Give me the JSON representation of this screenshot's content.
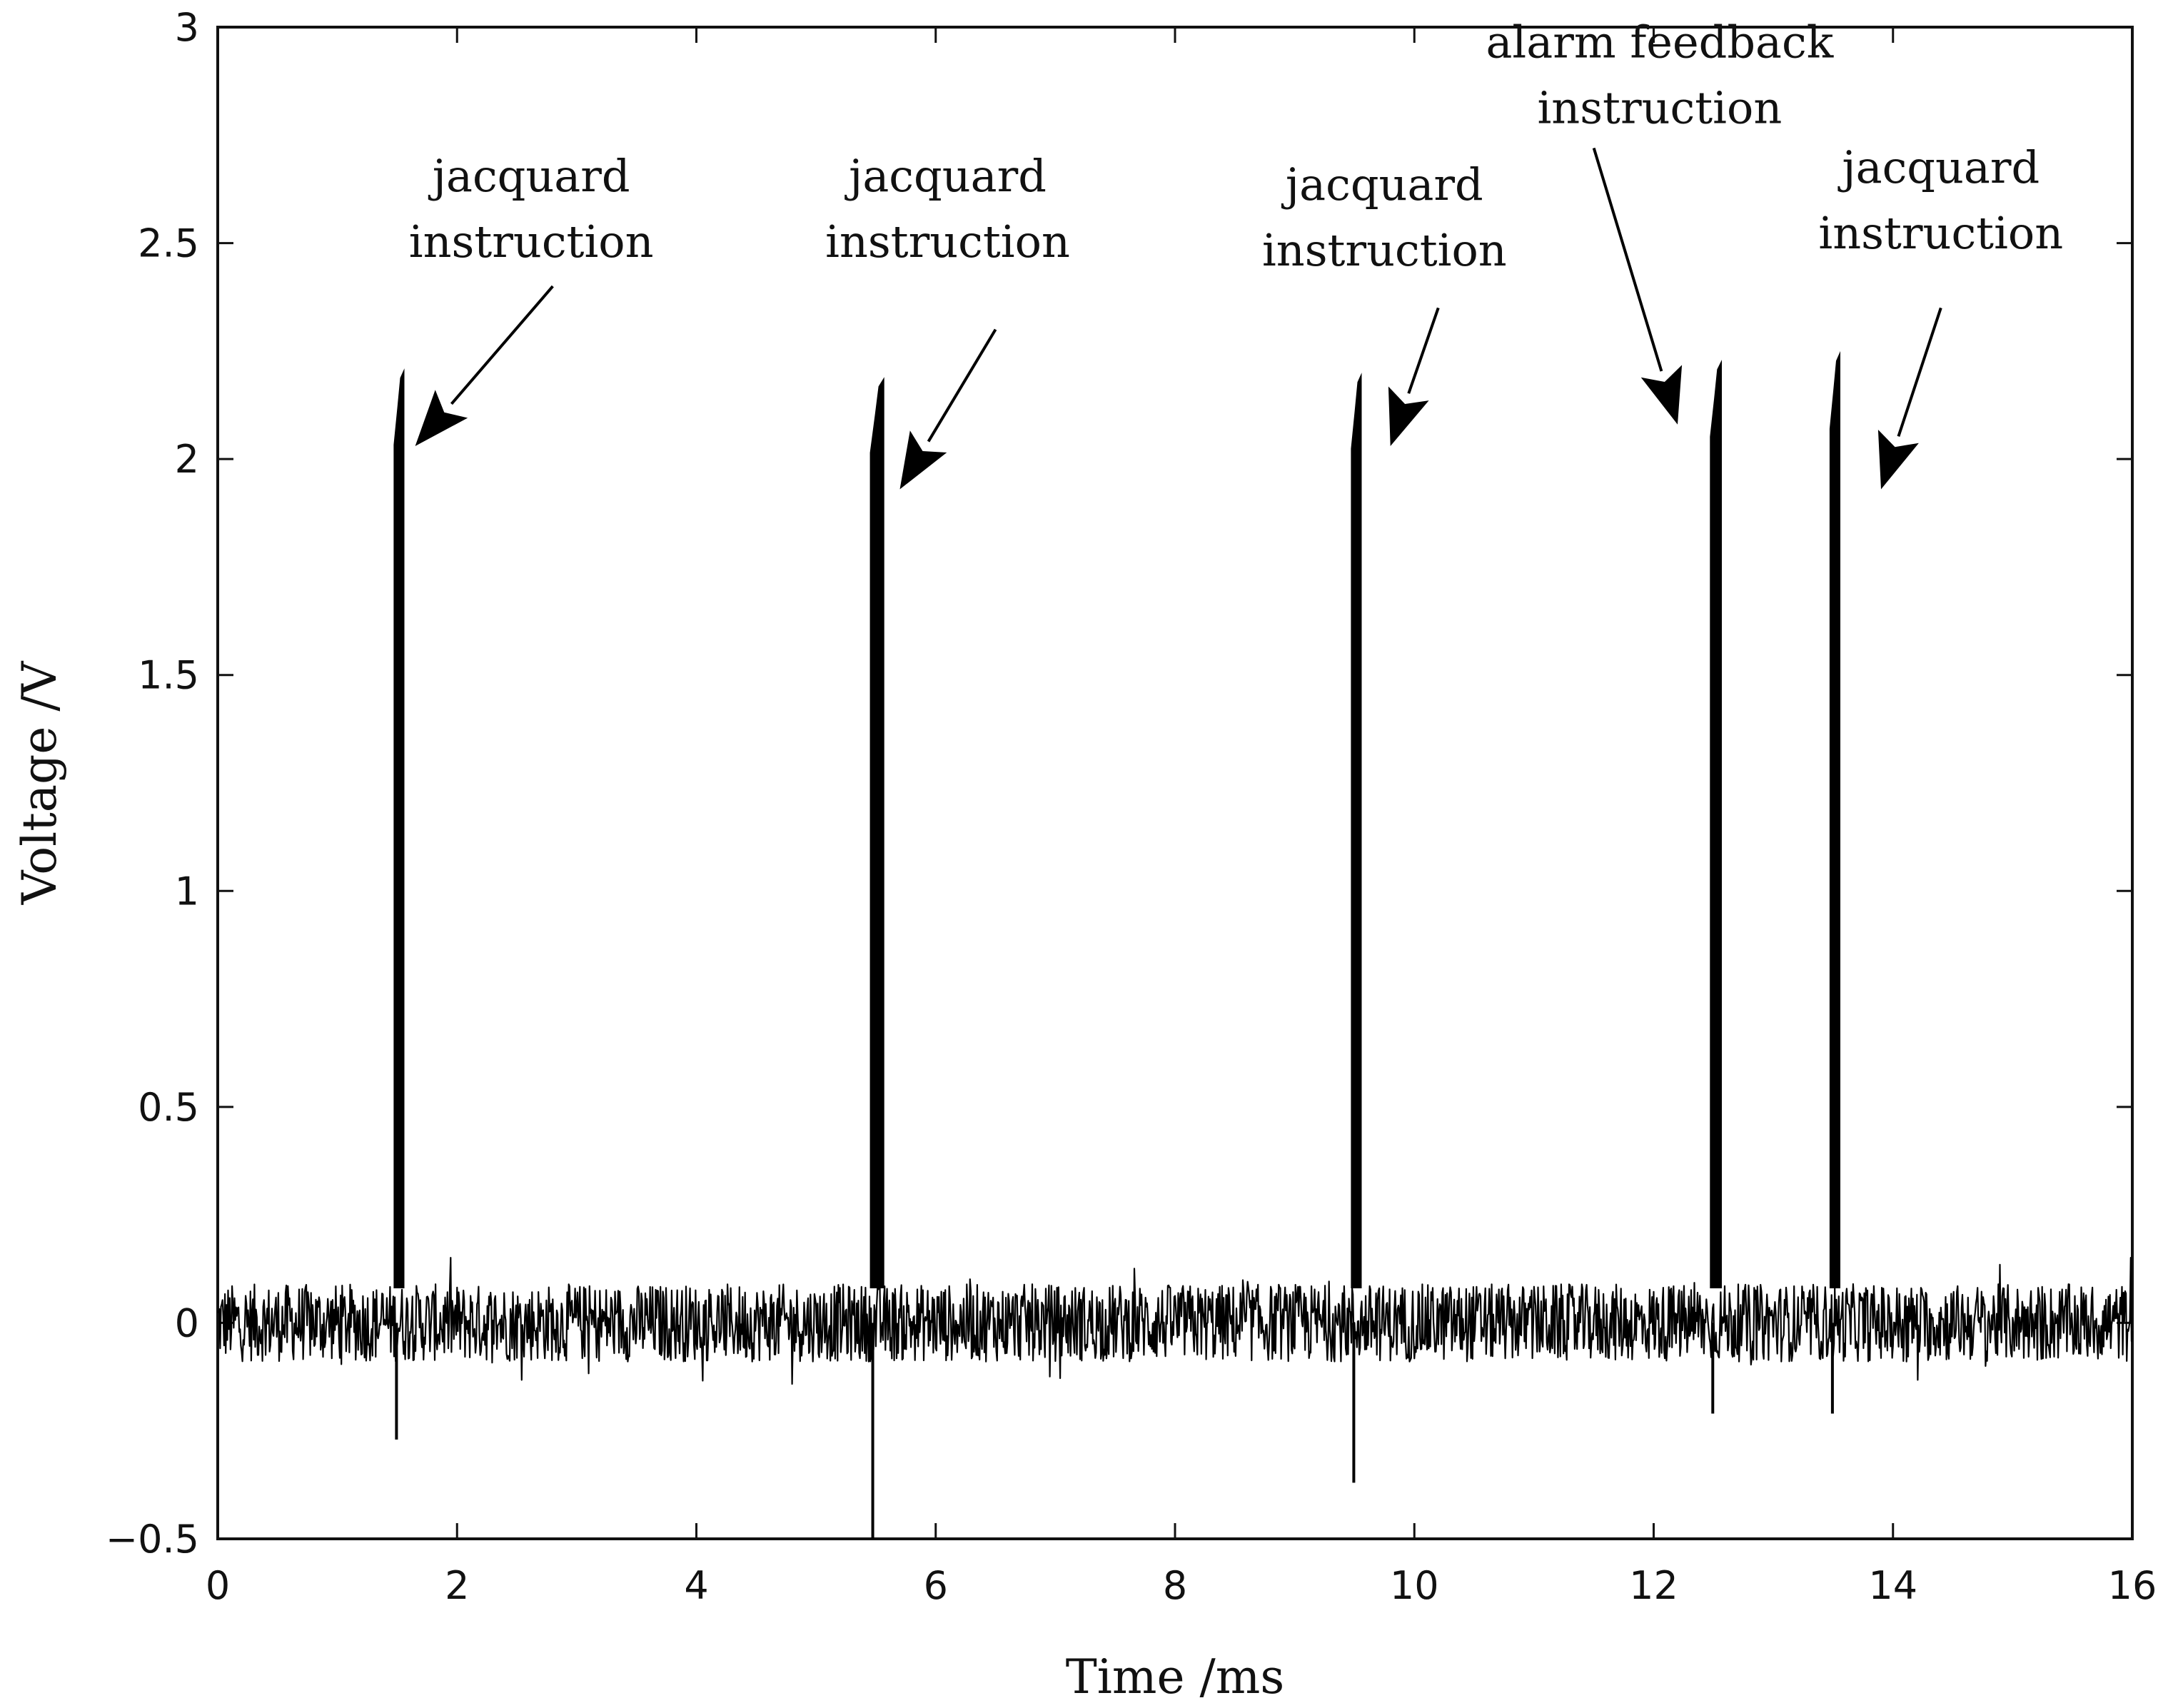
{
  "chart_data": {
    "type": "line",
    "title": "",
    "xlabel": "Time /ms",
    "ylabel": "Voltage /V",
    "xlim": [
      0,
      16
    ],
    "ylim": [
      -0.5,
      3
    ],
    "x_ticks": [
      0,
      2,
      4,
      6,
      8,
      10,
      12,
      14,
      16
    ],
    "y_ticks": [
      -0.5,
      0,
      0.5,
      1,
      1.5,
      2,
      2.5,
      3
    ],
    "x_tick_labels": [
      "0",
      "2",
      "4",
      "6",
      "8",
      "10",
      "12",
      "14",
      "16"
    ],
    "y_tick_labels": [
      "−0.5",
      "0",
      "0.5",
      "1",
      "1.5",
      "2",
      "2.5",
      "3"
    ],
    "grid": false,
    "legend": "none",
    "baseline_noise": {
      "level": 0.0,
      "band": [
        -0.09,
        0.09
      ]
    },
    "pulses": [
      {
        "start": 1.47,
        "end": 1.56,
        "peak": 2.21,
        "dip": -0.27
      },
      {
        "start": 5.45,
        "end": 5.57,
        "peak": 2.19,
        "dip": -0.5
      },
      {
        "start": 9.47,
        "end": 9.56,
        "peak": 2.2,
        "dip": -0.37
      },
      {
        "start": 12.47,
        "end": 12.57,
        "peak": 2.23,
        "dip": -0.21
      },
      {
        "start": 13.47,
        "end": 13.56,
        "peak": 2.25,
        "dip": -0.21
      }
    ],
    "annotations": [
      {
        "lines": [
          "jacquard",
          "instruction"
        ],
        "text_x": 2.62,
        "text_y": 2.62,
        "arrow_from": [
          2.8,
          2.4
        ],
        "arrow_to": [
          1.65,
          2.03
        ]
      },
      {
        "lines": [
          "jacquard",
          "instruction"
        ],
        "text_x": 6.1,
        "text_y": 2.62,
        "arrow_from": [
          6.5,
          2.3
        ],
        "arrow_to": [
          5.7,
          1.93
        ]
      },
      {
        "lines": [
          "jacquard",
          "instruction"
        ],
        "text_x": 9.75,
        "text_y": 2.6,
        "arrow_from": [
          10.2,
          2.35
        ],
        "arrow_to": [
          9.8,
          2.03
        ]
      },
      {
        "lines": [
          "alarm feedback",
          "instruction"
        ],
        "text_x": 12.05,
        "text_y": 2.93,
        "arrow_from": [
          11.5,
          2.72
        ],
        "arrow_to": [
          12.2,
          2.08
        ]
      },
      {
        "lines": [
          "jacquard",
          "instruction"
        ],
        "text_x": 14.4,
        "text_y": 2.64,
        "arrow_from": [
          14.4,
          2.35
        ],
        "arrow_to": [
          13.9,
          1.93
        ]
      }
    ]
  }
}
